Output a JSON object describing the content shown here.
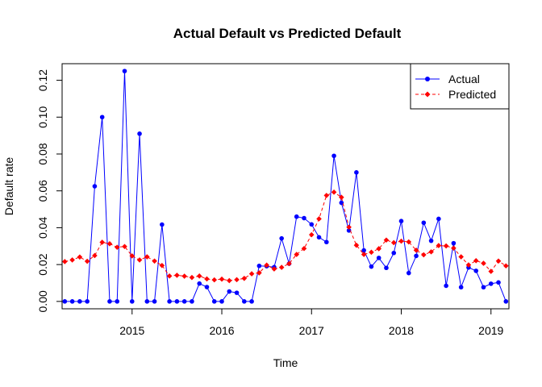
{
  "chart_data": {
    "type": "line",
    "title": "Actual Default vs Predicted Default",
    "xlabel": "Time",
    "ylabel": "Default rate",
    "xlim": [
      2014.22,
      2019.2
    ],
    "ylim": [
      -0.004,
      0.129
    ],
    "x_ticks": [
      2015,
      2016,
      2017,
      2018,
      2019
    ],
    "x_tick_labels": [
      "2015",
      "2016",
      "2017",
      "2018",
      "2019"
    ],
    "y_ticks": [
      0.0,
      0.02,
      0.04,
      0.06,
      0.08,
      0.1,
      0.12
    ],
    "y_tick_labels": [
      "0.00",
      "0.02",
      "0.04",
      "0.06",
      "0.08",
      "0.10",
      "0.12"
    ],
    "x_start": 2014.25,
    "x_step_months": 1,
    "legend_position": "top-right",
    "series": [
      {
        "name": "Actual",
        "color": "#0000ff",
        "line_style": "solid",
        "marker": "circle",
        "values": [
          0.0,
          0.0,
          0.0,
          0.0,
          0.0625,
          0.1,
          0.0,
          0.0,
          0.125,
          0.0,
          0.091,
          0.0,
          0.0,
          0.0417,
          0.0,
          0.0,
          0.0,
          0.0,
          0.0097,
          0.0078,
          0.0,
          0.0,
          0.0054,
          0.0047,
          0.0,
          0.0,
          0.0193,
          0.0191,
          0.0186,
          0.0342,
          0.0205,
          0.046,
          0.0452,
          0.0418,
          0.0348,
          0.0322,
          0.079,
          0.0535,
          0.0385,
          0.07,
          0.0277,
          0.0189,
          0.0236,
          0.0182,
          0.0263,
          0.0436,
          0.0154,
          0.0247,
          0.0427,
          0.0329,
          0.0448,
          0.0085,
          0.0316,
          0.0077,
          0.0184,
          0.0166,
          0.0077,
          0.0096,
          0.0103,
          0.0
        ]
      },
      {
        "name": "Predicted",
        "color": "#ff0000",
        "line_style": "dashed",
        "marker": "diamond",
        "values": [
          0.0216,
          0.0225,
          0.0241,
          0.0218,
          0.0249,
          0.0321,
          0.0313,
          0.0294,
          0.0298,
          0.0247,
          0.0225,
          0.0242,
          0.0219,
          0.0195,
          0.0138,
          0.0142,
          0.0137,
          0.013,
          0.0138,
          0.0122,
          0.0117,
          0.0121,
          0.0113,
          0.0118,
          0.0125,
          0.015,
          0.0155,
          0.0197,
          0.0176,
          0.0185,
          0.0205,
          0.0255,
          0.0287,
          0.0362,
          0.0448,
          0.0575,
          0.0593,
          0.0565,
          0.0403,
          0.0305,
          0.0255,
          0.0267,
          0.0286,
          0.0333,
          0.0319,
          0.0327,
          0.0323,
          0.0278,
          0.0253,
          0.0269,
          0.0303,
          0.0301,
          0.0289,
          0.0242,
          0.0198,
          0.0221,
          0.0207,
          0.0163,
          0.0219,
          0.0193
        ]
      }
    ]
  }
}
